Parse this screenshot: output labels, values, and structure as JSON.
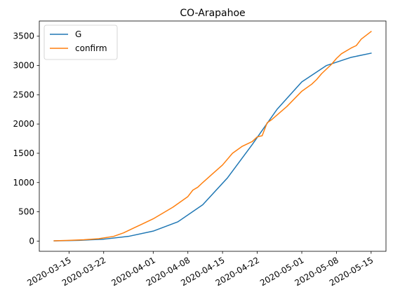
{
  "chart_data": {
    "type": "line",
    "title": "CO-Arapahoe",
    "xlabel": "",
    "ylabel": "",
    "x_start": "2020-03-12",
    "x_end": "2020-05-15",
    "xlim": [
      "2020-03-09",
      "2020-05-18"
    ],
    "ylim": [
      -175,
      3760
    ],
    "x_ticks": [
      "2020-03-15",
      "2020-03-22",
      "2020-04-01",
      "2020-04-08",
      "2020-04-15",
      "2020-04-22",
      "2020-05-01",
      "2020-05-08",
      "2020-05-15"
    ],
    "y_ticks": [
      0,
      500,
      1000,
      1500,
      2000,
      2500,
      3000,
      3500
    ],
    "grid": false,
    "legend": {
      "position": "top-left"
    },
    "series": [
      {
        "name": "G",
        "color": "#1f77b4",
        "x": [
          "2020-03-12",
          "2020-03-17",
          "2020-03-22",
          "2020-03-27",
          "2020-04-01",
          "2020-04-06",
          "2020-04-11",
          "2020-04-16",
          "2020-04-21",
          "2020-04-26",
          "2020-05-01",
          "2020-05-06",
          "2020-05-11",
          "2020-05-15"
        ],
        "values": [
          3,
          12,
          32,
          80,
          170,
          330,
          620,
          1080,
          1650,
          2250,
          2720,
          3000,
          3140,
          3210
        ]
      },
      {
        "name": "confirm",
        "color": "#ff7f0e",
        "x": [
          "2020-03-12",
          "2020-03-15",
          "2020-03-18",
          "2020-03-21",
          "2020-03-24",
          "2020-03-26",
          "2020-03-28",
          "2020-03-30",
          "2020-04-01",
          "2020-04-03",
          "2020-04-05",
          "2020-04-06",
          "2020-04-07",
          "2020-04-08",
          "2020-04-09",
          "2020-04-10",
          "2020-04-11",
          "2020-04-13",
          "2020-04-15",
          "2020-04-17",
          "2020-04-19",
          "2020-04-21",
          "2020-04-22",
          "2020-04-23",
          "2020-04-24",
          "2020-04-25",
          "2020-04-28",
          "2020-05-01",
          "2020-05-03",
          "2020-05-04",
          "2020-05-05",
          "2020-05-07",
          "2020-05-08",
          "2020-05-09",
          "2020-05-11",
          "2020-05-12",
          "2020-05-13",
          "2020-05-15"
        ],
        "values": [
          5,
          12,
          22,
          40,
          80,
          140,
          220,
          300,
          380,
          480,
          580,
          640,
          700,
          760,
          870,
          920,
          1000,
          1150,
          1300,
          1500,
          1620,
          1700,
          1780,
          1800,
          2020,
          2080,
          2300,
          2560,
          2680,
          2760,
          2860,
          3020,
          3120,
          3200,
          3300,
          3340,
          3450,
          3580
        ]
      }
    ]
  }
}
